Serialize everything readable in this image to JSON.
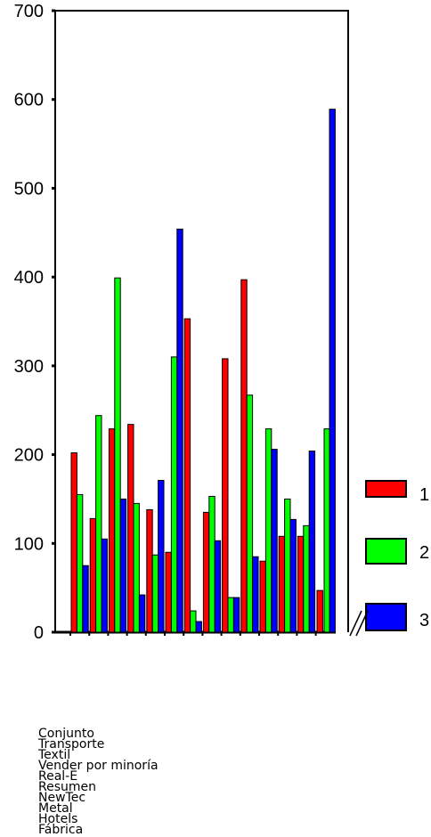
{
  "chart_data": {
    "type": "bar",
    "title": "",
    "xlabel": "",
    "ylabel": "",
    "ylim": [
      0,
      700
    ],
    "yticks": [
      0,
      100,
      200,
      300,
      400,
      500,
      600,
      700
    ],
    "ytick_labels": [
      "0",
      "100",
      "200",
      "300",
      "400",
      "500",
      "600",
      "700"
    ],
    "grid": false,
    "legend_position": "right",
    "categories": [
      "Conjunto",
      "Transporte",
      "Textil",
      "Vender por minoría",
      "Real-E",
      "Resumen",
      "NewTec",
      "Metal",
      "Hotels",
      "Fábrica",
      "",
      "",
      ""
    ],
    "visible_category_labels": [
      "Conjunto",
      "Transporte",
      "Textil",
      "Vender por minoría",
      "Real-E",
      "Resumen",
      "NewTec",
      "Metal",
      "Hotels",
      "Fábrica"
    ],
    "series": [
      {
        "name": "1",
        "color": "#ff0000",
        "values": [
          202,
          128,
          229,
          234,
          138,
          90,
          353,
          135,
          308,
          397,
          80,
          108,
          108
        ]
      },
      {
        "name": "2",
        "color": "#00ff00",
        "values": [
          155,
          244,
          399,
          145,
          87,
          310,
          24,
          153,
          39,
          267,
          229,
          150,
          120
        ]
      },
      {
        "name": "3",
        "color": "#0000ff",
        "values": [
          75,
          105,
          150,
          42,
          171,
          454,
          12,
          103,
          39,
          85,
          206,
          127,
          204
        ]
      }
    ],
    "extra_bars": [
      {
        "series": "1",
        "value": 47
      },
      {
        "series": "2",
        "value": 229
      },
      {
        "series": "3",
        "value": 589
      }
    ]
  }
}
